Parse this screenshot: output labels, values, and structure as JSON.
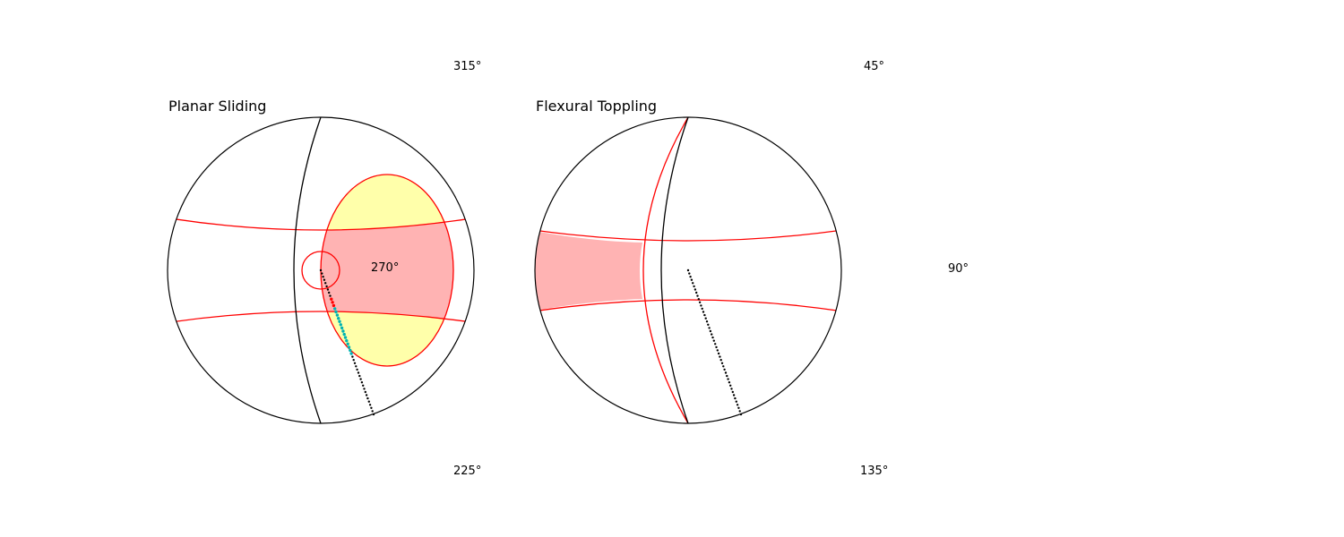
{
  "panels": [
    {
      "title": "Planar Sliding",
      "center_label": "270°",
      "top_label": "315°",
      "bottom_label": "225°",
      "side_label": ""
    },
    {
      "title": "Flexural Toppling",
      "center_label": "",
      "top_label": "45°",
      "bottom_label": "135°",
      "side_label": "90°"
    }
  ],
  "colors": {
    "outline": "#000000",
    "limit_lines": "#ff0000",
    "critical_zone": "#ffb3b3",
    "daylight_zone": "#ffffaa",
    "pole_points": "#000000",
    "planar_critical_points": "#ff0000",
    "planar_secondary_points": "#00b3b3"
  },
  "icons": {
    "stereonet": "stereonet-icon"
  }
}
